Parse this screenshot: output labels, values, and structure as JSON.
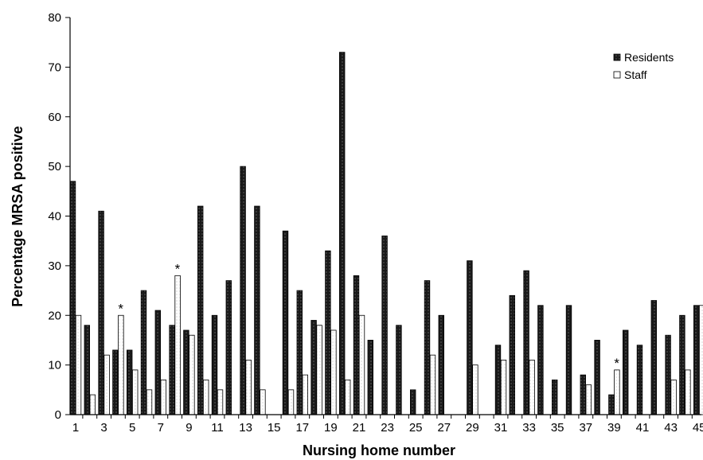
{
  "chart_data": {
    "type": "bar",
    "xlabel": "Nursing home number",
    "ylabel": "Percentage MRSA positive",
    "ylim": [
      0,
      80
    ],
    "yticks": [
      0,
      10,
      20,
      30,
      40,
      50,
      60,
      70,
      80
    ],
    "categories": [
      "1",
      "2",
      "3",
      "4",
      "5",
      "6",
      "7",
      "8",
      "9",
      "10",
      "11",
      "12",
      "13",
      "14",
      "15",
      "16",
      "17",
      "18",
      "19",
      "20",
      "21",
      "22",
      "23",
      "24",
      "25",
      "26",
      "27",
      "28",
      "29",
      "30",
      "31",
      "32",
      "33",
      "34",
      "35",
      "36",
      "37",
      "38",
      "39",
      "40",
      "41",
      "42",
      "43",
      "44",
      "45"
    ],
    "x_tick_labels": [
      "1",
      "3",
      "5",
      "7",
      "9",
      "11",
      "13",
      "15",
      "17",
      "19",
      "21",
      "23",
      "25",
      "27",
      "29",
      "31",
      "33",
      "35",
      "37",
      "39",
      "41",
      "43",
      "45"
    ],
    "series": [
      {
        "name": "Residents",
        "color": "#1a1a1a",
        "values": [
          47,
          18,
          41,
          13,
          13,
          25,
          21,
          18,
          17,
          42,
          20,
          27,
          50,
          42,
          0,
          37,
          25,
          19,
          33,
          73,
          28,
          15,
          36,
          18,
          5,
          27,
          20,
          0,
          31,
          0,
          14,
          24,
          29,
          22,
          7,
          22,
          8,
          15,
          4,
          17,
          14,
          23,
          16,
          20,
          22
        ]
      },
      {
        "name": "Staff",
        "color": "#ffffff",
        "values": [
          20,
          4,
          12,
          20,
          9,
          5,
          7,
          28,
          16,
          7,
          5,
          0,
          11,
          5,
          0,
          5,
          8,
          18,
          17,
          7,
          20,
          0,
          0,
          0,
          0,
          12,
          0,
          0,
          10,
          0,
          11,
          0,
          11,
          0,
          0,
          0,
          6,
          0,
          9,
          0,
          0,
          0,
          7,
          9,
          22
        ]
      }
    ],
    "annotations": [
      {
        "text": "*",
        "category": "4",
        "series": "Staff"
      },
      {
        "text": "*",
        "category": "8",
        "series": "Staff"
      },
      {
        "text": "*",
        "category": "39",
        "series": "Staff"
      }
    ],
    "legend_position": "top-right",
    "grid": false
  }
}
